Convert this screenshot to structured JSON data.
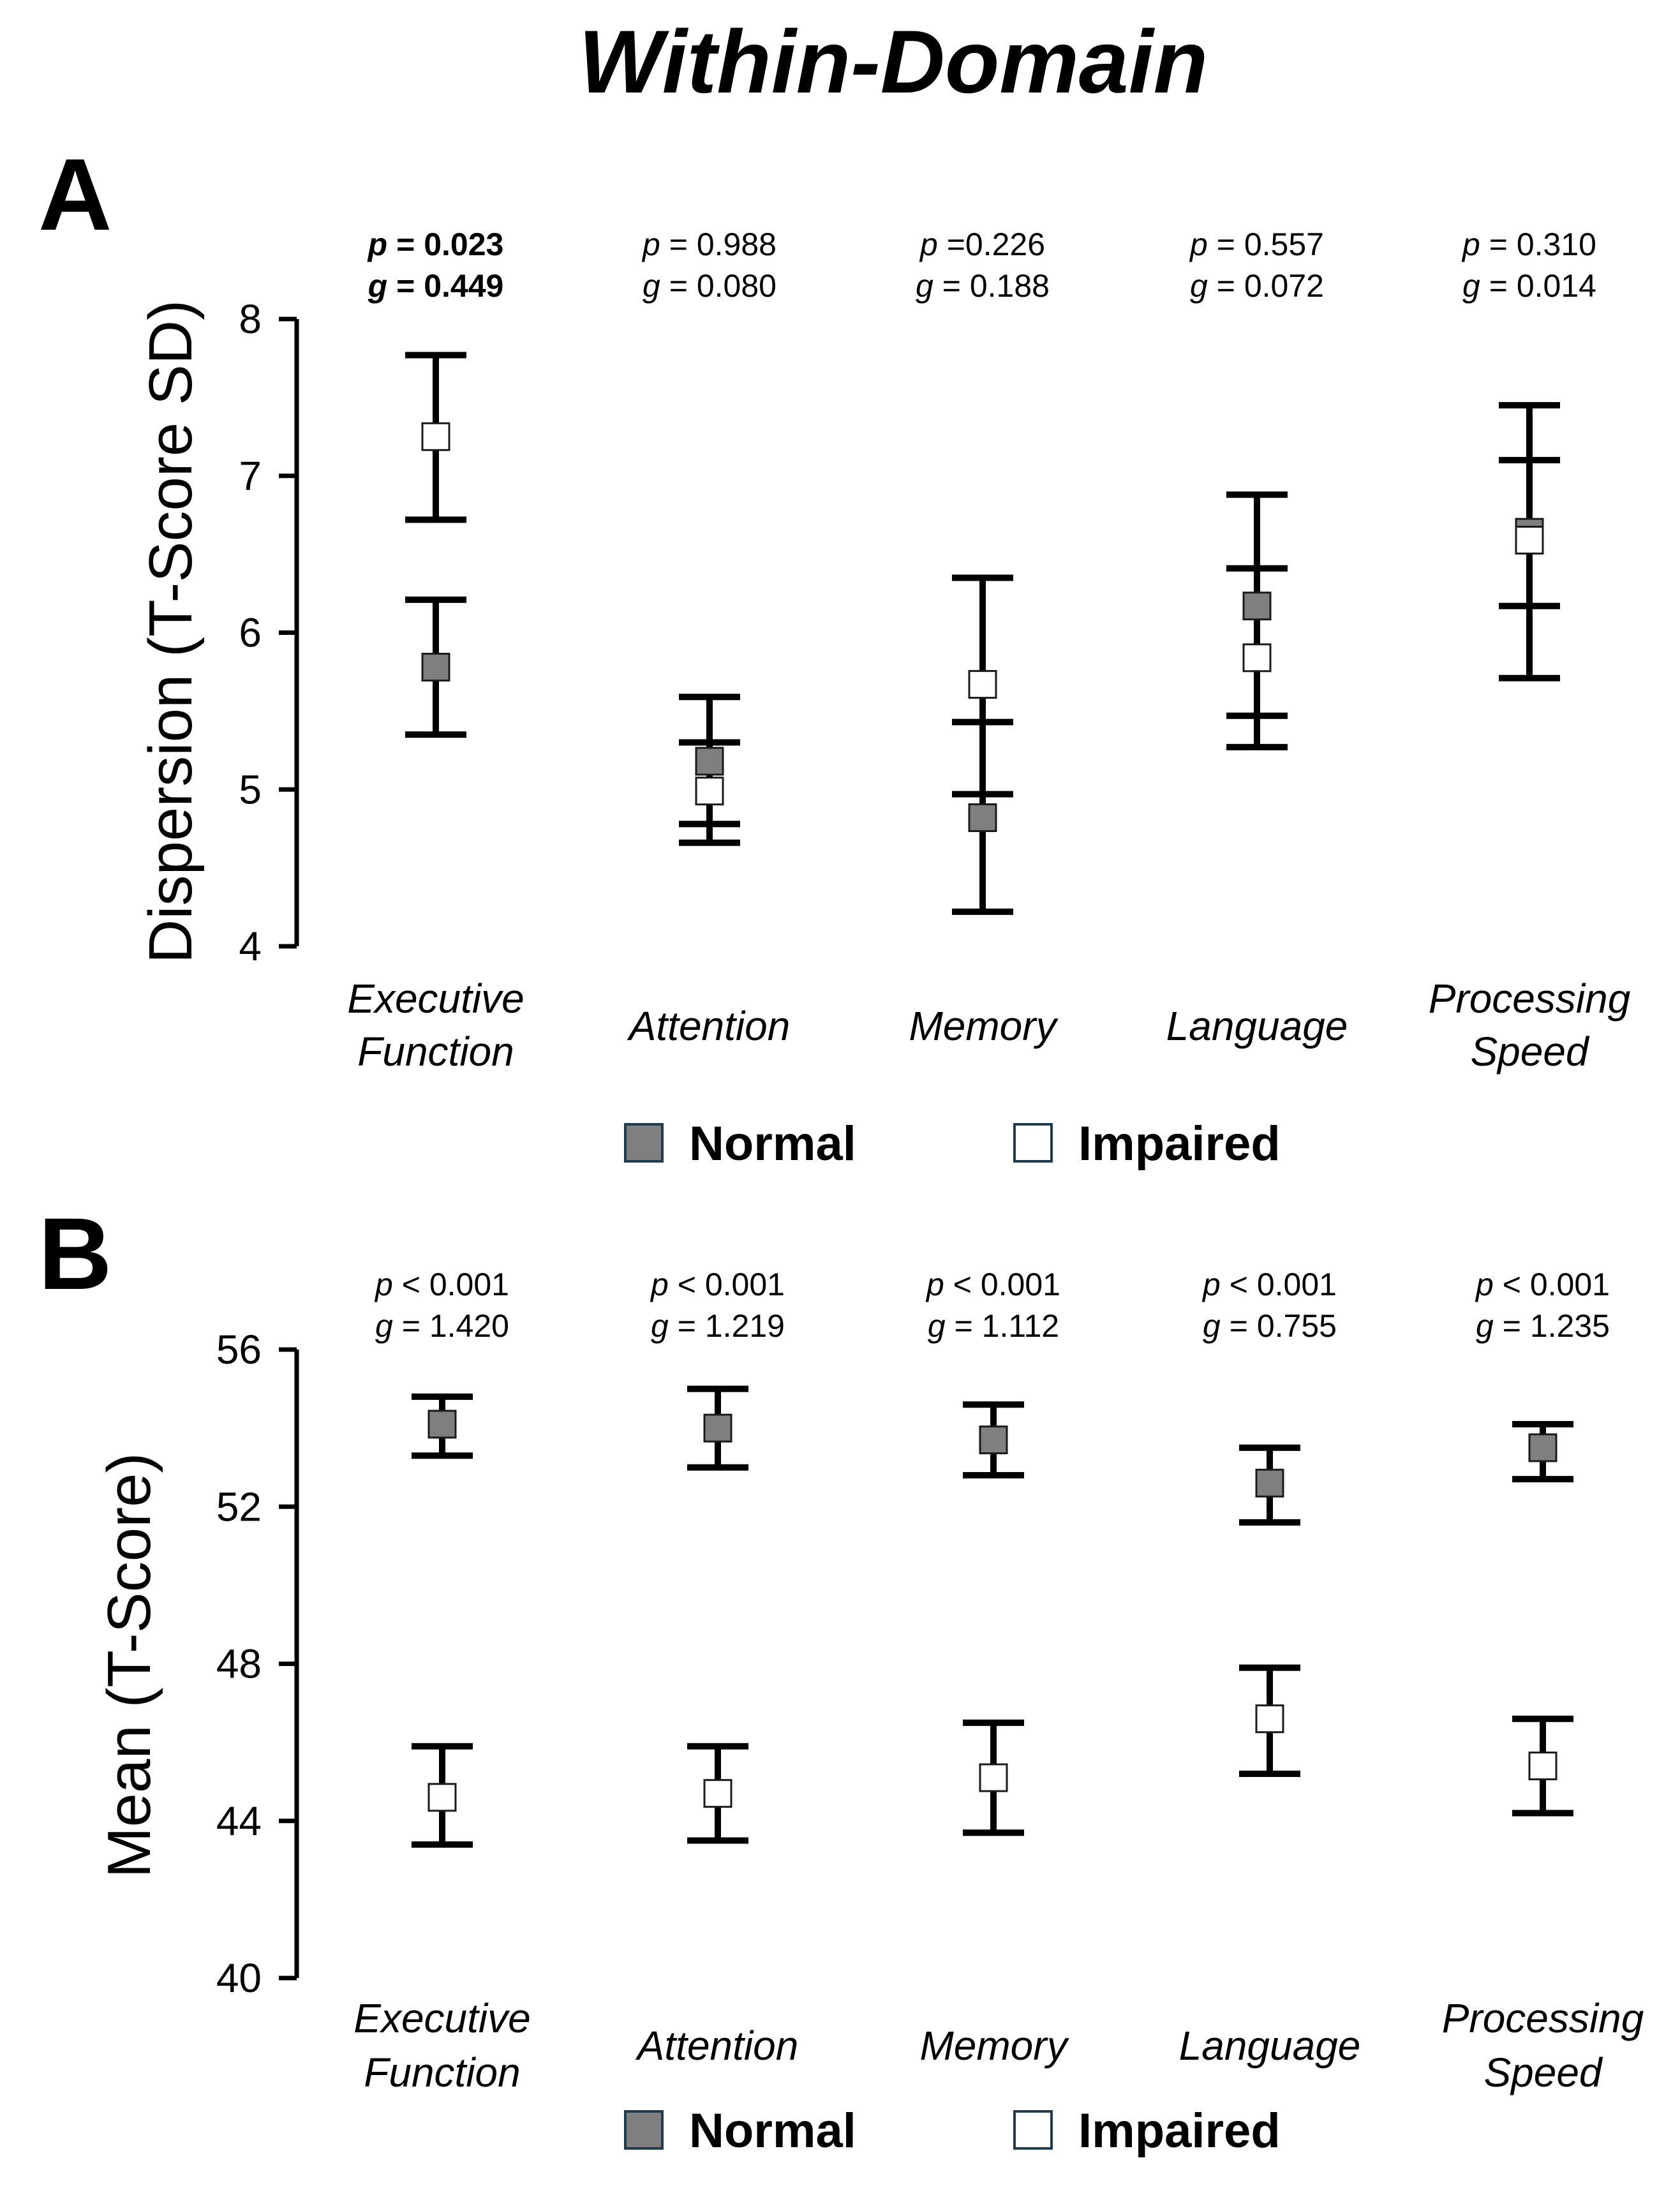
{
  "title": "Within-Domain",
  "colors": {
    "normal": "#7f7f7f",
    "impaired": "#ffffff",
    "line": "#000000"
  },
  "chart_data": [
    {
      "panel": "A",
      "type": "scatter",
      "ylabel": "Dispersion (T-Score SD)",
      "ylim": [
        4,
        8
      ],
      "yticks": [
        "4",
        "5",
        "6",
        "7",
        "8"
      ],
      "categories": [
        "Executive Function",
        "Attention",
        "Memory",
        "Language",
        "Processing Speed"
      ],
      "category_lines": [
        [
          "Executive",
          "Function"
        ],
        [
          "Attention"
        ],
        [
          "Memory"
        ],
        [
          "Language"
        ],
        [
          "Processing",
          "Speed"
        ]
      ],
      "stats": [
        {
          "p_sym": "p",
          "p_text": " = 0.023",
          "g_sym": "g",
          "g_text": " = 0.449",
          "bold": true
        },
        {
          "p_sym": "p",
          "p_text": " = 0.988",
          "g_sym": "g",
          "g_text": " = 0.080",
          "bold": false
        },
        {
          "p_sym": "p",
          "p_text": " =0.226",
          "g_sym": "g",
          "g_text": " = 0.188",
          "bold": false
        },
        {
          "p_sym": "p",
          "p_text": " = 0.557",
          "g_sym": "g",
          "g_text": " = 0.072",
          "bold": false
        },
        {
          "p_sym": "p",
          "p_text": " = 0.310",
          "g_sym": "g",
          "g_text": " = 0.014",
          "bold": false
        }
      ],
      "series": [
        {
          "name": "Normal",
          "values": [
            5.78,
            5.18,
            4.82,
            6.17,
            6.64
          ],
          "lower": [
            5.35,
            4.78,
            4.22,
            5.47,
            6.17
          ],
          "upper": [
            6.21,
            5.3,
            5.43,
            6.88,
            7.1
          ]
        },
        {
          "name": "Impaired",
          "values": [
            7.25,
            4.99,
            5.67,
            5.84,
            6.59
          ],
          "lower": [
            6.72,
            4.66,
            4.97,
            5.27,
            5.71
          ],
          "upper": [
            7.77,
            5.59,
            6.35,
            6.41,
            7.45
          ]
        }
      ],
      "legend": [
        "Normal",
        "Impaired"
      ]
    },
    {
      "panel": "B",
      "type": "scatter",
      "ylabel": "Mean (T-Score)",
      "ylim": [
        40,
        56
      ],
      "yticks": [
        "40",
        "44",
        "48",
        "52",
        "56"
      ],
      "categories": [
        "Executive Function",
        "Attention",
        "Memory",
        "Language",
        "Processing Speed"
      ],
      "category_lines": [
        [
          "Executive",
          "Function"
        ],
        [
          "Attention"
        ],
        [
          "Memory"
        ],
        [
          "Language"
        ],
        [
          "Processing",
          "Speed"
        ]
      ],
      "stats": [
        {
          "p_sym": "p",
          "p_text": " < 0.001",
          "g_sym": "g",
          "g_text": " = 1.420",
          "bold": false
        },
        {
          "p_sym": "p",
          "p_text": " < 0.001",
          "g_sym": "g",
          "g_text": " = 1.219",
          "bold": false
        },
        {
          "p_sym": "p",
          "p_text": " < 0.001",
          "g_sym": "g",
          "g_text": " = 1.112",
          "bold": false
        },
        {
          "p_sym": "p",
          "p_text": " < 0.001",
          "g_sym": "g",
          "g_text": " = 0.755",
          "bold": false
        },
        {
          "p_sym": "p",
          "p_text": " < 0.001",
          "g_sym": "g",
          "g_text": " = 1.235",
          "bold": false
        }
      ],
      "series": [
        {
          "name": "Normal",
          "values": [
            54.1,
            54.0,
            53.7,
            52.6,
            53.5
          ],
          "lower": [
            53.3,
            53.0,
            52.8,
            51.6,
            52.7
          ],
          "upper": [
            54.8,
            55.0,
            54.6,
            53.5,
            54.1
          ]
        },
        {
          "name": "Impaired",
          "values": [
            44.6,
            44.7,
            45.1,
            46.6,
            45.4
          ],
          "lower": [
            43.4,
            43.5,
            43.7,
            45.2,
            44.2
          ],
          "upper": [
            45.9,
            45.9,
            46.5,
            47.9,
            46.6
          ]
        }
      ],
      "legend": [
        "Normal",
        "Impaired"
      ]
    }
  ]
}
